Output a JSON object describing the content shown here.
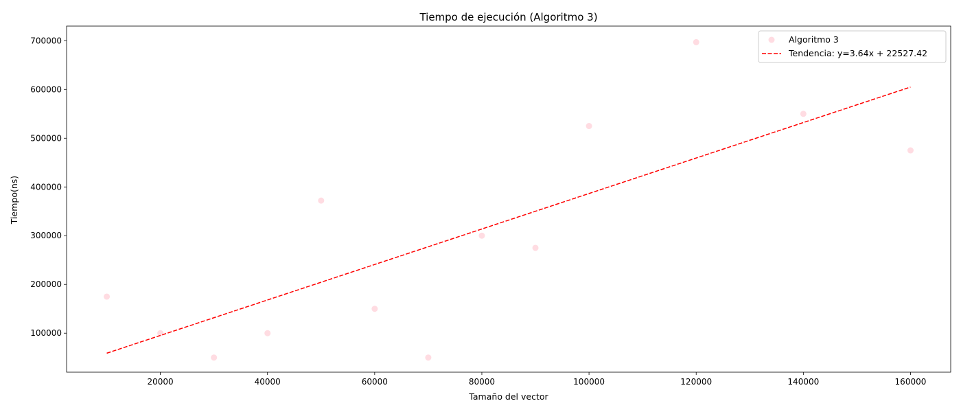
{
  "chart_data": {
    "type": "scatter",
    "title": "Tiempo de ejecución (Algoritmo 3)",
    "xlabel": "Tamaño del vector",
    "ylabel": "Tiempo(ns)",
    "xlim": [
      2500,
      167500
    ],
    "ylim": [
      20000,
      730000
    ],
    "xticks": [
      20000,
      40000,
      60000,
      80000,
      100000,
      120000,
      140000,
      160000
    ],
    "yticks": [
      100000,
      200000,
      300000,
      400000,
      500000,
      600000,
      700000
    ],
    "grid": false,
    "legend_position": "top-right",
    "series": [
      {
        "name": "Algoritmo 3",
        "kind": "scatter",
        "color": "#ffc0cb",
        "x": [
          10000,
          20000,
          30000,
          40000,
          50000,
          60000,
          70000,
          80000,
          90000,
          100000,
          120000,
          140000,
          160000
        ],
        "y": [
          175000,
          100000,
          50000,
          100000,
          372000,
          150000,
          50000,
          300000,
          275000,
          525000,
          697000,
          550000,
          475000
        ]
      },
      {
        "name": "Tendencia: y=3.64x + 22527.42",
        "kind": "trendline",
        "color": "#ff0000",
        "slope": 3.64,
        "intercept": 22527.42,
        "x_range": [
          10000,
          160000
        ]
      }
    ]
  }
}
